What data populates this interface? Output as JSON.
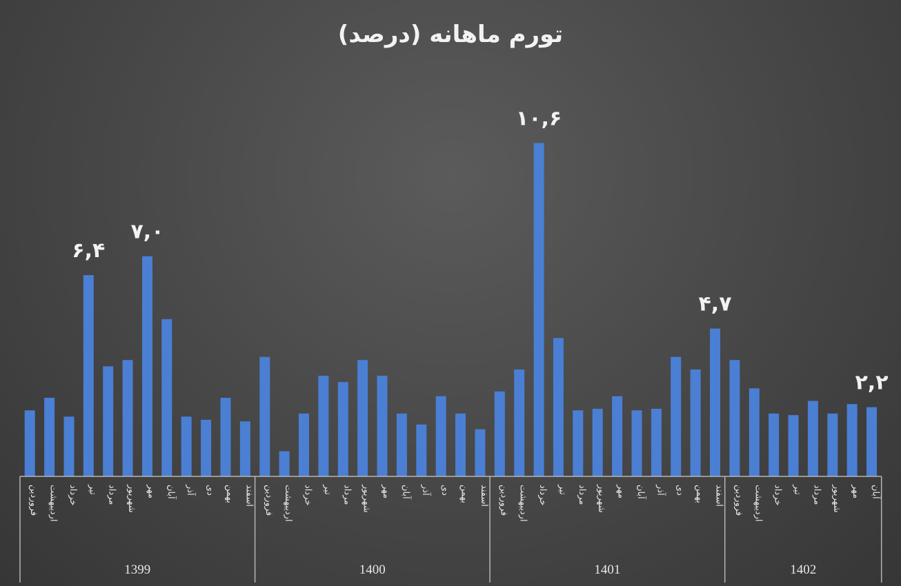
{
  "chart_data": {
    "type": "bar",
    "title": "تورم ماهانه (درصد)",
    "color": "#4a7fd4",
    "ylim": [
      0,
      11.4
    ],
    "month_labels": [
      "فروردین",
      "اردیبهشت",
      "خرداد",
      "تیر",
      "مرداد",
      "شهریور",
      "مهر",
      "آبان",
      "آذر",
      "دی",
      "بهمن",
      "اسفند"
    ],
    "groups": [
      {
        "year": "1399",
        "months": 12
      },
      {
        "year": "1400",
        "months": 12
      },
      {
        "year": "1401",
        "months": 12
      },
      {
        "year": "1402",
        "months": 8
      }
    ],
    "values": [
      2.1,
      2.5,
      1.9,
      6.4,
      3.5,
      3.7,
      7.0,
      5.0,
      1.9,
      1.8,
      2.5,
      1.75,
      3.8,
      0.8,
      2.0,
      3.2,
      3.0,
      3.7,
      3.2,
      2.0,
      1.65,
      2.55,
      2.0,
      1.5,
      2.7,
      3.4,
      10.6,
      4.4,
      2.1,
      2.15,
      2.55,
      2.1,
      2.15,
      3.8,
      3.4,
      4.7,
      3.7,
      2.8,
      2.0,
      1.95,
      2.4,
      2.0,
      2.3,
      2.2
    ],
    "data_labels": [
      {
        "index": 3,
        "text": "۶,۴"
      },
      {
        "index": 6,
        "text": "۷,۰"
      },
      {
        "index": 26,
        "text": "۱۰,۶"
      },
      {
        "index": 35,
        "text": "۴,۷"
      },
      {
        "index": 43,
        "text": "۲,۲"
      }
    ]
  }
}
